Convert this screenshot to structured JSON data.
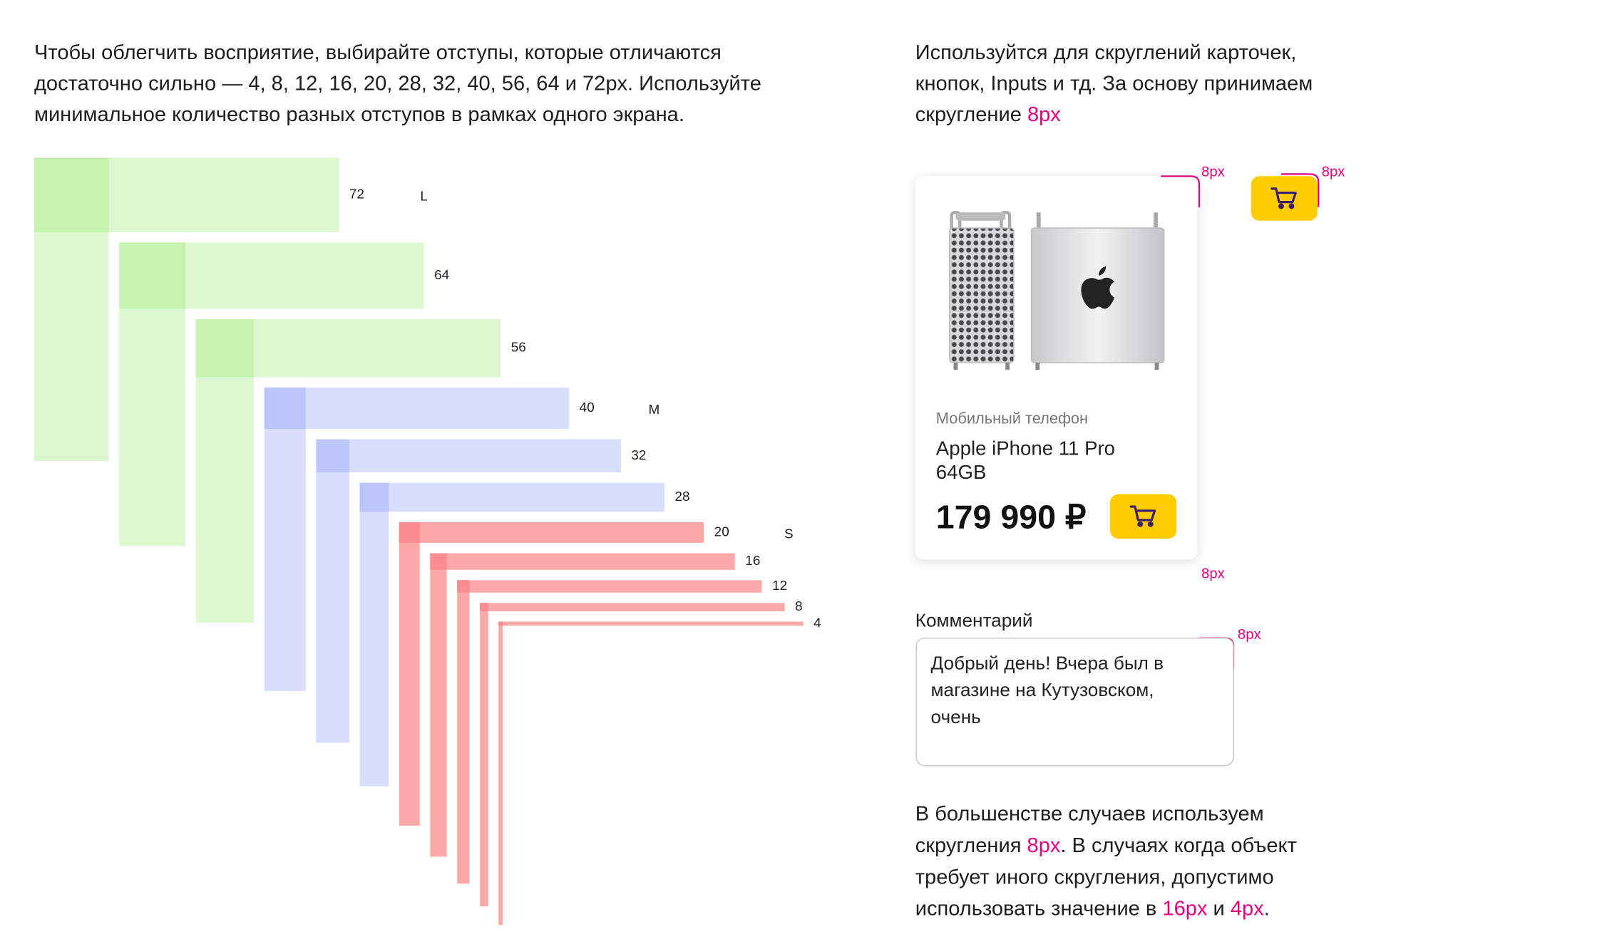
{
  "intro": {
    "lines": [
      "Чтобы облегчить восприятие, выбирайте отступы, которые отличаются",
      "достаточно сильно — 4, 8, 12, 16, 20, 28, 32, 40, 56, 64 и 72px.  Используйте",
      "минимальное количество разных отступов в рамках одного экрана."
    ]
  },
  "spacing": {
    "groups": [
      {
        "label": "L",
        "color": "#ddf8d0",
        "corner": "#c5f2b0",
        "items": [
          72,
          64,
          56
        ]
      },
      {
        "label": "M",
        "color": "#d9defc",
        "corner": "#bcc6fa",
        "items": [
          40,
          32,
          28
        ]
      },
      {
        "label": "S",
        "color": "#fda9aa",
        "corner": "#fb8d92",
        "items": [
          20,
          16,
          12,
          8,
          4
        ]
      }
    ]
  },
  "radius": {
    "lines": [
      [
        {
          "text": "Используйтся для скруглений карточек,"
        }
      ],
      [
        {
          "text": "кнопок, Inputs и тд. За основу принимаем"
        }
      ],
      [
        {
          "text": "скругление "
        },
        {
          "text": "8px",
          "color": "#e6007e"
        }
      ]
    ]
  },
  "card": {
    "category": "Мобильный телефон",
    "name_lines": [
      "Apple iPhone 11 Pro",
      "64GB"
    ],
    "price": "179 990 ₽"
  },
  "annotations": [
    "8px",
    "8px",
    "8px",
    "8px"
  ],
  "comment": {
    "label": "Комментарий",
    "lines": [
      "Добрый день! Вчера был в",
      "магазине на Кутузовском,",
      "очень"
    ]
  },
  "summary": {
    "lines": [
      [
        {
          "text": "В большенстве случаев используем"
        }
      ],
      [
        {
          "text": "скругления "
        },
        {
          "text": "8px",
          "color": "#e6007e"
        },
        {
          "text": ". В случаях когда объект"
        }
      ],
      [
        {
          "text": "требует иного скругления, допустимо"
        }
      ],
      [
        {
          "text": "использовать значение в "
        },
        {
          "text": "16px",
          "color": "#e6007e"
        },
        {
          "text": " и "
        },
        {
          "text": "4px",
          "color": "#e6007e"
        },
        {
          "text": "."
        }
      ]
    ]
  }
}
